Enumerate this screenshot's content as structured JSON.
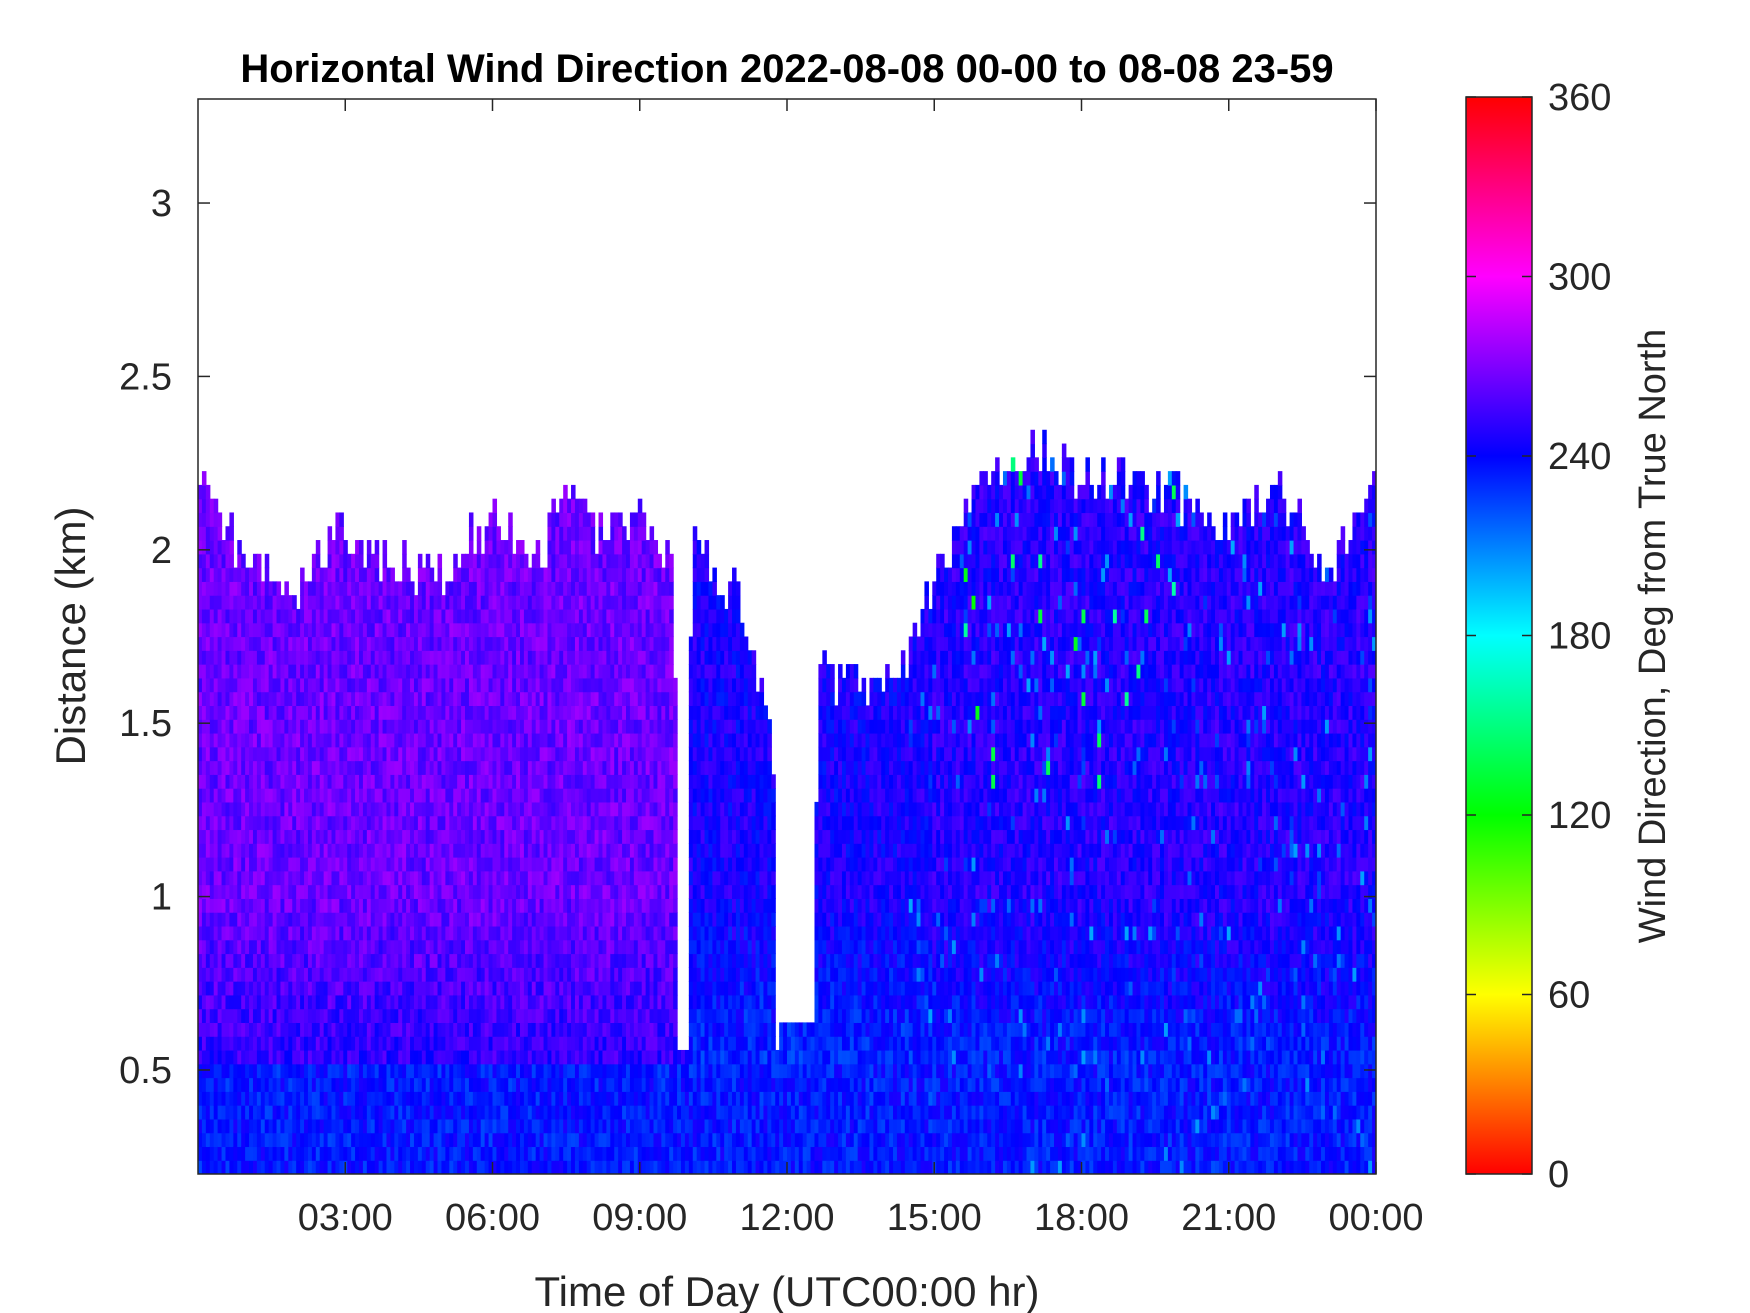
{
  "chart_data": {
    "type": "heatmap",
    "title": "Horizontal Wind Direction 2022-08-08 00-00 to 08-08 23-59",
    "xlabel": "Time of Day (UTC00:00 hr)",
    "ylabel": "Distance (km)",
    "x_range_hours": [
      0,
      24
    ],
    "x_tick_values_hours": [
      3,
      6,
      9,
      12,
      15,
      18,
      21,
      24
    ],
    "x_tick_labels": [
      "03:00",
      "06:00",
      "09:00",
      "12:00",
      "15:00",
      "18:00",
      "21:00",
      "00:00"
    ],
    "ylim": [
      0.2,
      3.3
    ],
    "y_ticks": [
      0.5,
      1,
      1.5,
      2,
      2.5,
      3
    ],
    "y_tick_labels": [
      "0.5",
      "1",
      "1.5",
      "2",
      "2.5",
      "3"
    ],
    "grid": false,
    "colorbar": {
      "label": "Wind Direction, Deg from True North",
      "limits": [
        0,
        360
      ],
      "ticks": [
        0,
        60,
        120,
        180,
        240,
        300,
        360
      ],
      "tick_labels": [
        "0",
        "60",
        "120",
        "180",
        "240",
        "300",
        "360"
      ],
      "colormap": [
        "#ff0000",
        "#ffaa00",
        "#ffff00",
        "#80ff00",
        "#00ff00",
        "#00ff80",
        "#00ffff",
        "#0080ff",
        "#0000ff",
        "#8000ff",
        "#ff00ff",
        "#ff0080",
        "#ff0000"
      ]
    },
    "coverage_top_km": {
      "hours": [
        0,
        1,
        2,
        3,
        4,
        5,
        6,
        7,
        7.5,
        8,
        9,
        9.7,
        9.8,
        10.1,
        10.5,
        11,
        11.5,
        11.7,
        11.8,
        12.5,
        12.7,
        13,
        14,
        14.5,
        15,
        16,
        17,
        18,
        19,
        20,
        21,
        22,
        23,
        24
      ],
      "top_km": [
        2.25,
        1.95,
        1.9,
        2.05,
        1.95,
        1.95,
        2.1,
        1.95,
        2.2,
        2.05,
        2.1,
        1.95,
        0.55,
        2.05,
        1.95,
        1.85,
        1.6,
        1.5,
        0.6,
        0.6,
        1.8,
        1.6,
        1.6,
        1.7,
        1.9,
        2.2,
        2.3,
        2.2,
        2.2,
        2.15,
        2.05,
        2.2,
        1.9,
        2.25
      ]
    },
    "gaps_hours": [
      [
        9.75,
        10.0
      ],
      [
        11.9,
        12.6
      ]
    ],
    "typical_direction_deg": {
      "lower_layer_below_0_5km": 235,
      "00:00_to_10:00_upper": 265,
      "10:00_to_15:00": 245,
      "15:00_to_24:00": 248
    }
  }
}
